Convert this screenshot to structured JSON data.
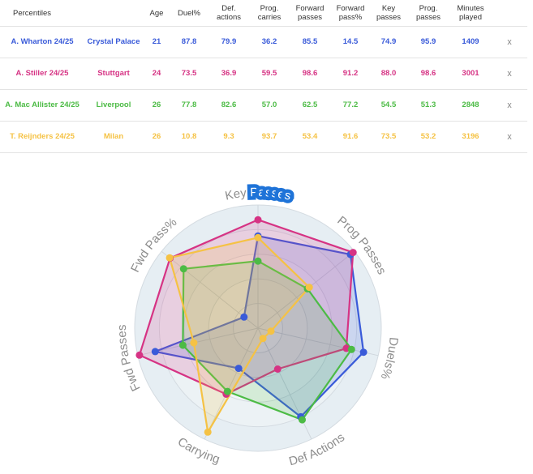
{
  "table": {
    "headers": [
      "Percentiles",
      "Age",
      "Duel%",
      "Def. actions",
      "Prog. carries",
      "Forward passes",
      "Forward pass%",
      "Key passes",
      "Prog. passes",
      "Minutes played"
    ],
    "remove_label": "x",
    "rows": [
      {
        "player": "A. Wharton 24/25",
        "team": "Crystal Palace",
        "color": "#3a5bd9",
        "age": "21",
        "values": [
          "87.8",
          "79.9",
          "36.2",
          "85.5",
          "14.5",
          "74.9",
          "95.9"
        ],
        "minutes": "1409"
      },
      {
        "player": "A. Stiller 24/25",
        "team": "Stuttgart",
        "color": "#d63384",
        "age": "24",
        "values": [
          "73.5",
          "36.9",
          "59.5",
          "98.6",
          "91.2",
          "88.0",
          "98.6"
        ],
        "minutes": "3001"
      },
      {
        "player": "A. Mac Allister 24/25",
        "team": "Liverpool",
        "color": "#4cbb45",
        "age": "26",
        "values": [
          "77.8",
          "82.6",
          "57.0",
          "62.5",
          "77.2",
          "54.5",
          "51.3"
        ],
        "minutes": "2848"
      },
      {
        "player": "T. Reijnders 24/25",
        "team": "Milan",
        "color": "#f5c244",
        "age": "26",
        "values": [
          "10.8",
          "9.3",
          "93.7",
          "53.4",
          "91.6",
          "73.5",
          "53.2"
        ],
        "minutes": "3196"
      }
    ]
  },
  "chart_data": {
    "type": "radar",
    "axes": [
      {
        "label_pre": "Key ",
        "label_hl": "Passes"
      },
      {
        "label_pre": "Prog Passes",
        "label_hl": ""
      },
      {
        "label_pre": "Duels%",
        "label_hl": ""
      },
      {
        "label_pre": "Def Actions",
        "label_hl": ""
      },
      {
        "label_pre": "Carrying",
        "label_hl": ""
      },
      {
        "label_pre": "Fwd Passes",
        "label_hl": ""
      },
      {
        "label_pre": "Fwd Pass%",
        "label_hl": ""
      }
    ],
    "range": [
      0,
      100
    ],
    "series": [
      {
        "name": "A. Wharton 24/25",
        "color": "#3a5bd9",
        "values": [
          74.9,
          95.9,
          87.8,
          79.9,
          36.2,
          85.5,
          14.5
        ]
      },
      {
        "name": "A. Stiller 24/25",
        "color": "#d63384",
        "values": [
          88.0,
          98.6,
          73.5,
          36.9,
          59.5,
          98.6,
          91.2
        ]
      },
      {
        "name": "A. Mac Allister 24/25",
        "color": "#4cbb45",
        "values": [
          54.5,
          51.3,
          77.8,
          82.6,
          57.0,
          62.5,
          77.2
        ]
      },
      {
        "name": "T. Reijnders 24/25",
        "color": "#f5c244",
        "values": [
          73.5,
          53.2,
          10.8,
          9.3,
          93.7,
          53.4,
          91.6
        ]
      }
    ],
    "highlight_color": "#1e73d8"
  }
}
